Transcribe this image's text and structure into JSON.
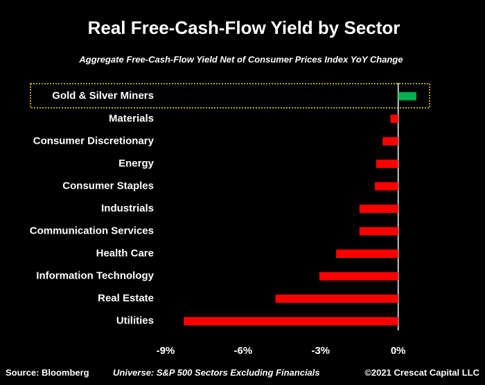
{
  "chart_data": {
    "type": "bar",
    "orientation": "horizontal",
    "title": "Real Free-Cash-Flow Yield by Sector",
    "subtitle": "Aggregate Free-Cash-Flow Yield Net of Consumer Prices Index YoY Change",
    "categories": [
      "Gold & Silver Miners",
      "Materials",
      "Consumer Discretionary",
      "Energy",
      "Consumer Staples",
      "Industrials",
      "Communication Services",
      "Health Care",
      "Information Technology",
      "Real Estate",
      "Utilities"
    ],
    "values": [
      0.7,
      -0.3,
      -0.6,
      -0.85,
      -0.9,
      -1.5,
      -1.5,
      -2.4,
      -3.05,
      -4.75,
      -8.3
    ],
    "colors": [
      "#00b050",
      "#ff0000",
      "#ff0000",
      "#ff0000",
      "#ff0000",
      "#ff0000",
      "#ff0000",
      "#ff0000",
      "#ff0000",
      "#ff0000",
      "#ff0000"
    ],
    "xlim": [
      -9,
      1
    ],
    "xticks": [
      {
        "value": -9,
        "label": "-9%"
      },
      {
        "value": -6,
        "label": "-6%"
      },
      {
        "value": -3,
        "label": "-3%"
      },
      {
        "value": 0,
        "label": "0%"
      }
    ],
    "footer": {
      "source": "Source: Bloomberg",
      "universe": "Universe: S&P 500 Sectors Excluding Financials",
      "copyright": "©2021 Crescat Capital LLC"
    }
  }
}
